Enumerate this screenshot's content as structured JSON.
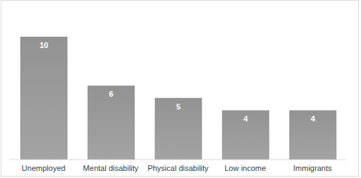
{
  "chart_data": {
    "type": "bar",
    "categories": [
      "Unemployed",
      "Mental disability",
      "Physical disability",
      "Low income",
      "Immigrants"
    ],
    "values": [
      10,
      6,
      5,
      4,
      4
    ],
    "color": "#939393",
    "ylim": [
      0,
      10
    ],
    "grid": false,
    "data_labels": true,
    "tick_labels": "x"
  }
}
